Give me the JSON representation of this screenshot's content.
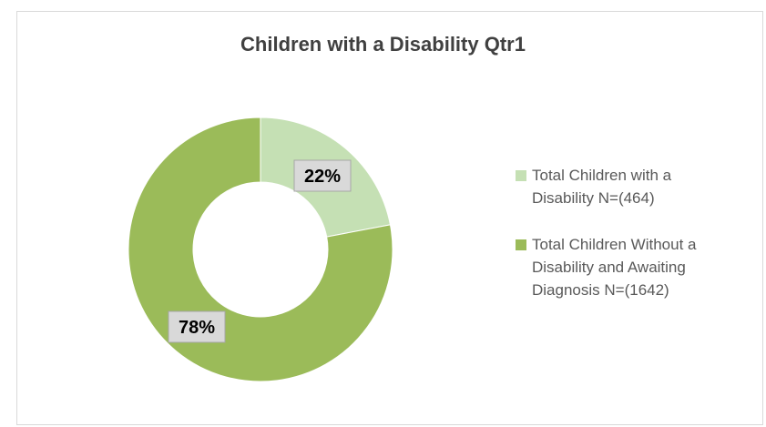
{
  "chart_data": {
    "type": "pie",
    "donut": true,
    "title": "Children with a Disability Qtr1",
    "categories": [
      "Total Children with a\nDisability  N=(464)",
      "Total Children Without a\nDisability and Awaiting\nDiagnosis N=(1642)"
    ],
    "values": [
      22,
      78
    ],
    "data_labels": [
      "22%",
      "78%"
    ],
    "colors": [
      "#c5e0b4",
      "#9bbb59"
    ],
    "legend_position": "right"
  }
}
